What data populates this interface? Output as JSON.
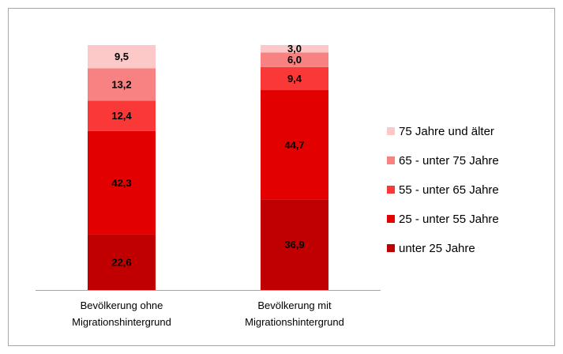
{
  "chart_data": {
    "type": "stacked_bar",
    "categories": [
      "Bevölkerung ohne Migrationshintergrund",
      "Bevölkerung mit Migrationshintergrund"
    ],
    "ylim": [
      0,
      100
    ],
    "legend": "right",
    "series": [
      {
        "name": "unter 25 Jahre",
        "color": "#c00000",
        "values": [
          22.6,
          36.9
        ],
        "value_labels": [
          "22,6",
          "36,9"
        ]
      },
      {
        "name": "25 - unter 55 Jahre",
        "color": "#e30000",
        "values": [
          42.3,
          44.7
        ],
        "value_labels": [
          "42,3",
          "44,7"
        ]
      },
      {
        "name": "55 - unter 65 Jahre",
        "color": "#fa3838",
        "values": [
          12.4,
          9.4
        ],
        "value_labels": [
          "12,4",
          "9,4"
        ]
      },
      {
        "name": "65 - unter 75 Jahre",
        "color": "#f88282",
        "values": [
          13.2,
          6.0
        ],
        "value_labels": [
          "13,2",
          "6,0"
        ]
      },
      {
        "name": "75 Jahre und älter",
        "color": "#fcc8c8",
        "values": [
          9.5,
          3.0
        ],
        "value_labels": [
          "9,5",
          "3,0"
        ]
      }
    ]
  }
}
